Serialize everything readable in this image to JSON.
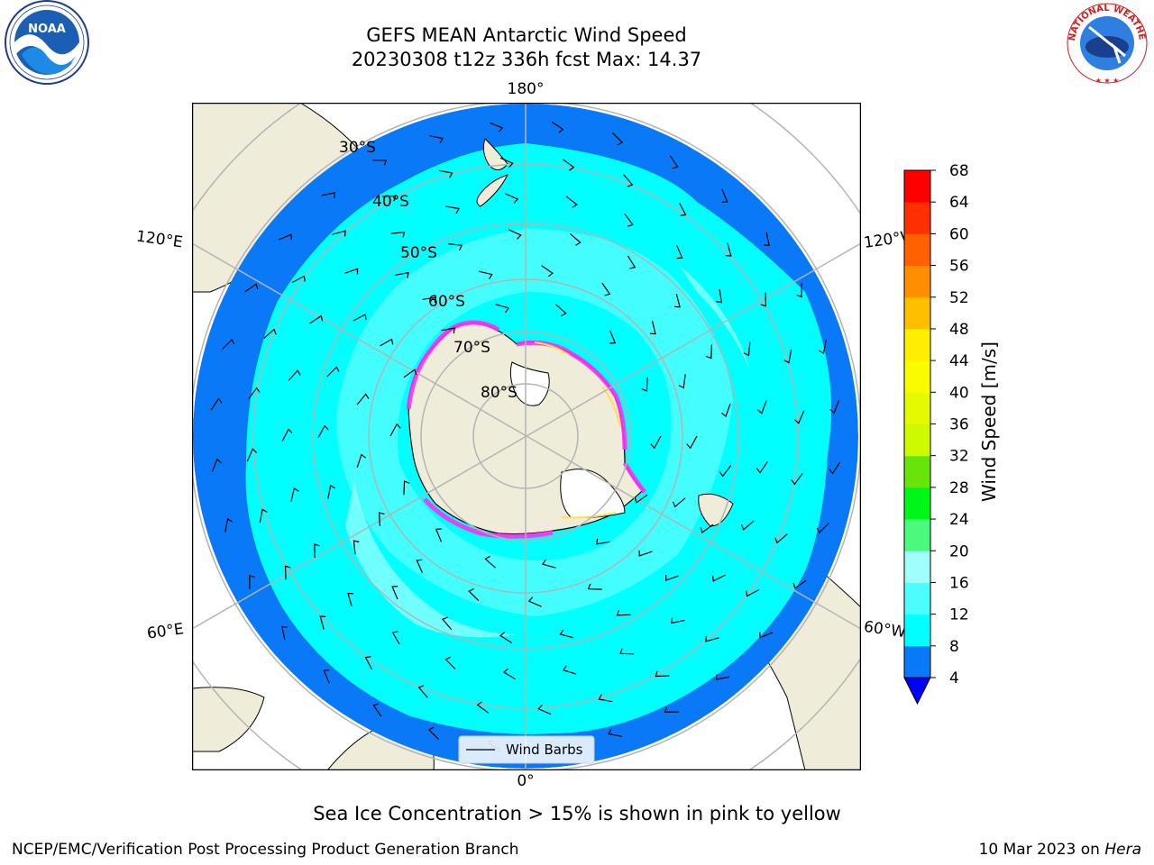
{
  "title": {
    "line1": "GEFS MEAN Antarctic Wind Speed",
    "line2": "20230308 t12z 336h fcst   Max: 14.37"
  },
  "map": {
    "projection": "south polar stereographic",
    "lon_labels": {
      "top": "180°",
      "bottom": "0°",
      "upper_left": "120°E",
      "upper_right": "120°W",
      "lower_left": "60°E",
      "lower_right": "60°W"
    },
    "lat_labels": [
      "30°S",
      "40°S",
      "50°S",
      "60°S",
      "70°S",
      "80°S"
    ],
    "legend": "Wind Barbs",
    "colors": {
      "land": "#efedda",
      "sea_ice_low": "#ff2ff3",
      "sea_ice_high": "#ffe24a",
      "gridlines": "#b4b4b4"
    }
  },
  "colorbar": {
    "label": "Wind Speed [m/s]",
    "ticks": [
      "4",
      "8",
      "12",
      "16",
      "20",
      "24",
      "28",
      "32",
      "36",
      "40",
      "44",
      "48",
      "52",
      "56",
      "60",
      "64",
      "68"
    ],
    "colors": [
      "#0a79f8",
      "#00ffff",
      "#4bfdfd",
      "#a0fffc",
      "#4bfa7d",
      "#00f619",
      "#68e40a",
      "#cdfa00",
      "#e4fa00",
      "#fafa00",
      "#ffee00",
      "#ffbe00",
      "#ff8f00",
      "#ff6000",
      "#ff3000",
      "#ff0000"
    ],
    "extend_color": "#0000ff"
  },
  "caption": "Sea Ice Concentration > 15% is shown in pink to yellow",
  "footer": {
    "left": "NCEP/EMC/Verification Post Processing Product Generation Branch",
    "right_prefix": "10 Mar 2023 on ",
    "right_host": "Hera"
  },
  "logos": {
    "left_text": "NOAA",
    "right_text": "NATIONAL WEATHER SERVICE"
  }
}
